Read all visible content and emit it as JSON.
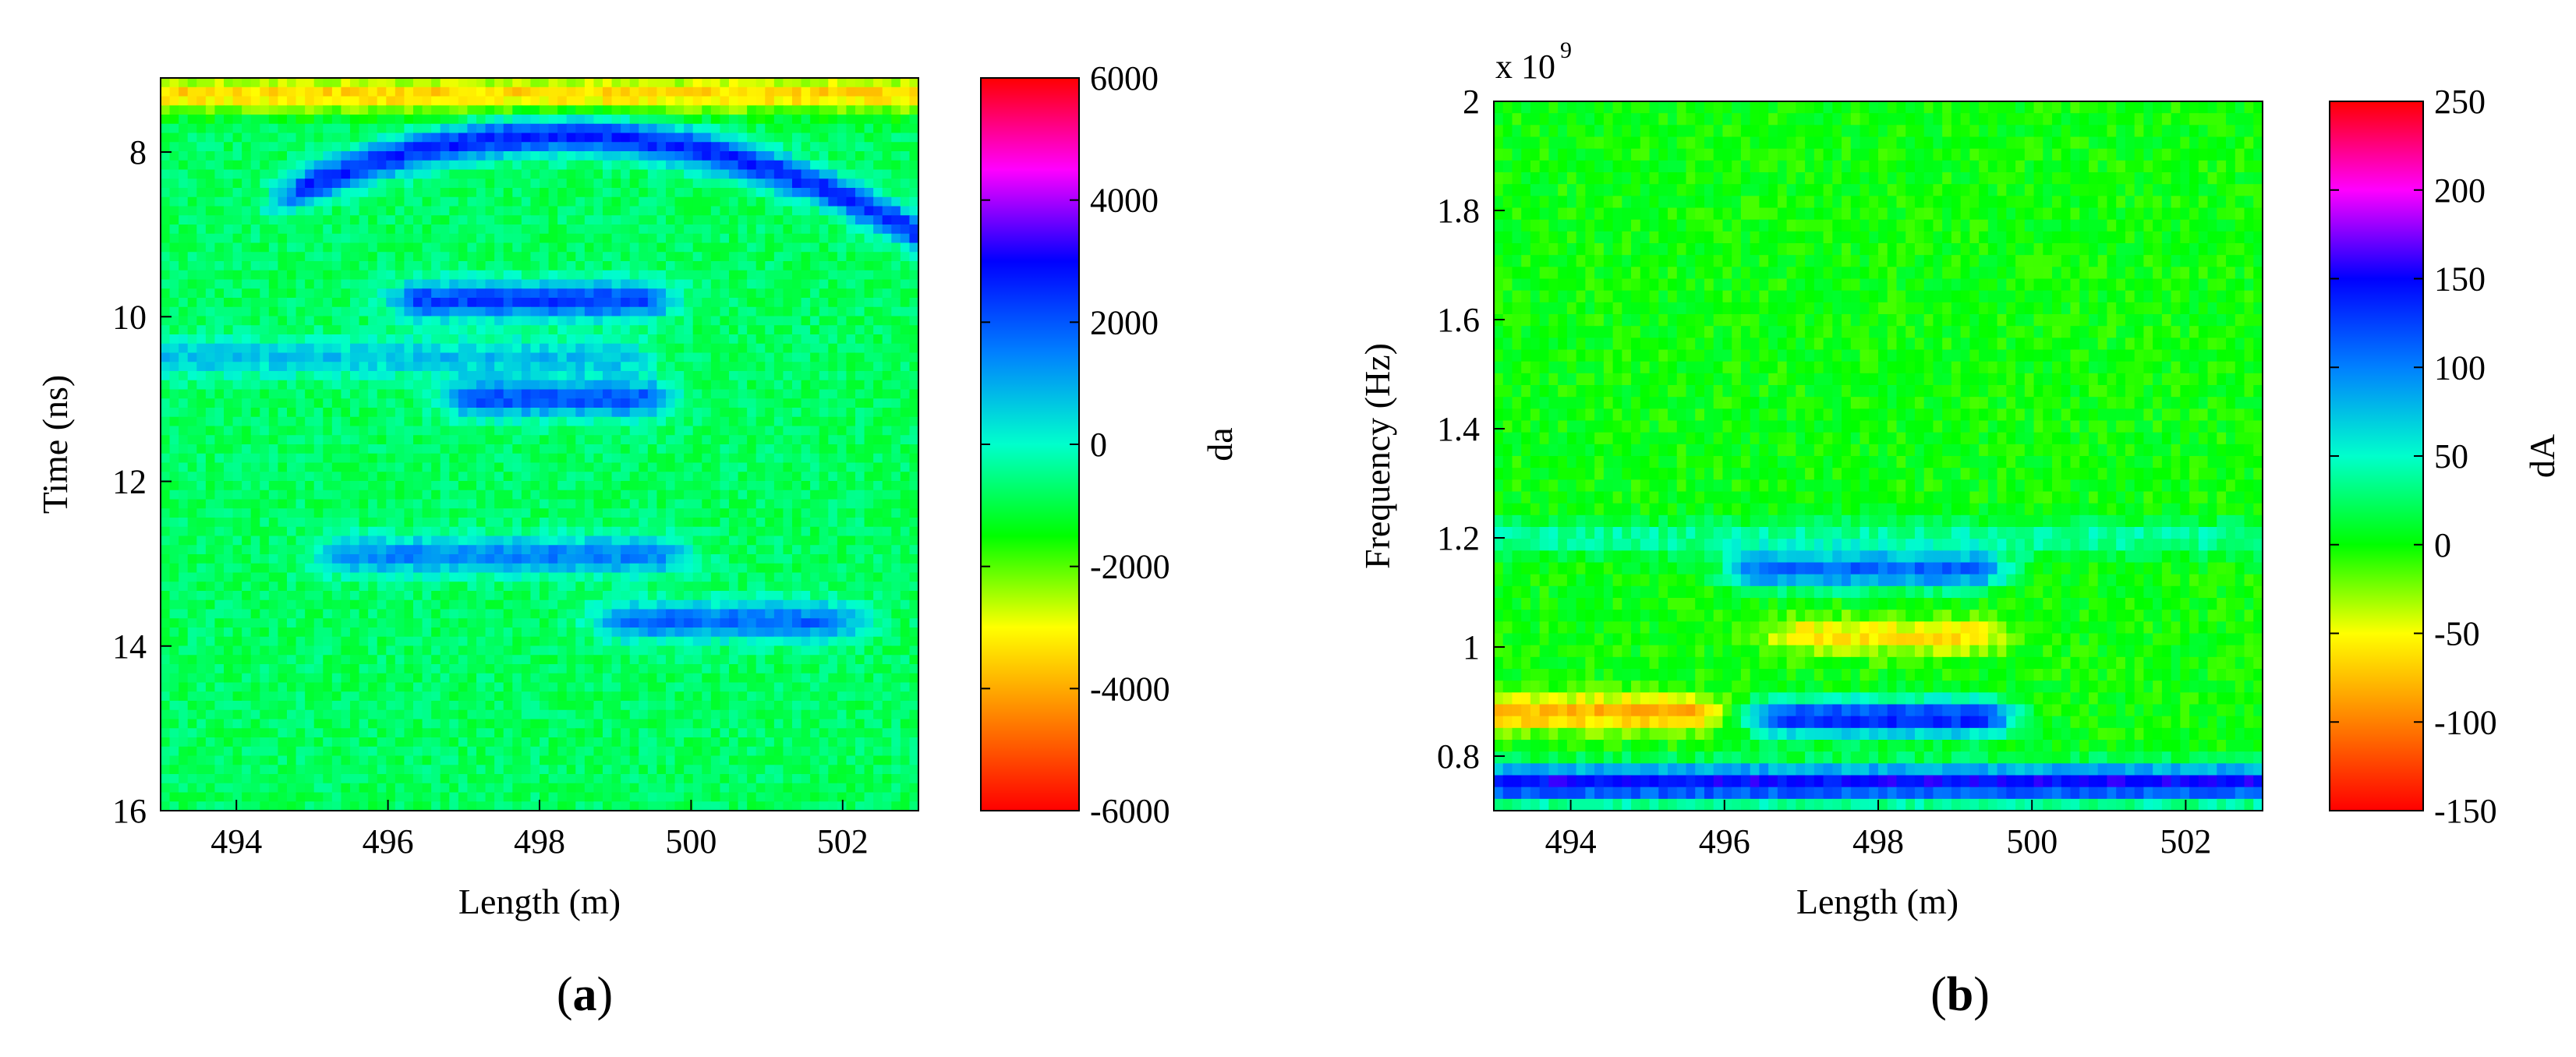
{
  "chart_data": [
    {
      "type": "heatmap",
      "panel_label": "a",
      "title": "",
      "xlabel": "Length (m)",
      "ylabel": "Time (ns)",
      "xlim": [
        493,
        503
      ],
      "ylim": [
        16,
        7.1
      ],
      "y_direction": "down",
      "xticks": [
        494,
        496,
        498,
        500,
        502
      ],
      "yticks": [
        8,
        10,
        12,
        14,
        16
      ],
      "grid": false,
      "colorbar": {
        "label": "da",
        "range": [
          -6000,
          6000
        ],
        "ticks": [
          6000,
          4000,
          2000,
          0,
          -2000,
          -4000,
          -6000
        ],
        "tick_labels": [
          "6000",
          "4000",
          "2000",
          "0",
          "-2000",
          "-4000",
          "-6000"
        ]
      },
      "background_value": -800,
      "features": [
        {
          "shape": "arc",
          "x_range": [
            495,
            503
          ],
          "y_peak": 7.8,
          "y_end": 9.0,
          "peak_x": 498.3,
          "value": 2600
        },
        {
          "shape": "band",
          "x_range": [
            496.5,
            499.3
          ],
          "y": 9.8,
          "value": 2300
        },
        {
          "shape": "band",
          "x_range": [
            497.2,
            499.3
          ],
          "y": 11.0,
          "value": 2000
        },
        {
          "shape": "band",
          "x_range": [
            493,
            499
          ],
          "y": 10.5,
          "value": 700
        },
        {
          "shape": "band",
          "x_range": [
            495.5,
            499.5
          ],
          "y": 12.9,
          "value": 1500
        },
        {
          "shape": "band",
          "x_range": [
            499.2,
            501.8
          ],
          "y": 13.7,
          "value": 1800
        },
        {
          "shape": "band",
          "x_range": [
            493,
            503
          ],
          "y": 7.3,
          "value": -3500
        }
      ]
    },
    {
      "type": "heatmap",
      "panel_label": "b",
      "title": "",
      "xlabel": "Length (m)",
      "ylabel": "Frequency (Hz)",
      "x_multiplier_label": "x 10",
      "y_exponent": "9",
      "xlim": [
        493,
        503
      ],
      "ylim": [
        0.7,
        2.0
      ],
      "xticks": [
        494,
        496,
        498,
        500,
        502
      ],
      "yticks": [
        0.8,
        1.0,
        1.2,
        1.4,
        1.6,
        1.8,
        2.0
      ],
      "ytick_labels": [
        "0.8",
        "1",
        "1.2",
        "1.4",
        "1.6",
        "1.8",
        "2"
      ],
      "grid": false,
      "colorbar": {
        "label": "dA",
        "range": [
          -150,
          250
        ],
        "ticks": [
          250,
          200,
          150,
          100,
          50,
          0,
          -50,
          -100,
          -150
        ],
        "tick_labels": [
          "250",
          "200",
          "150",
          "100",
          "50",
          "0",
          "-50",
          "-100",
          "-150"
        ]
      },
      "background_value": 0,
      "features": [
        {
          "shape": "band",
          "x_range": [
            493,
            503
          ],
          "y": 0.75,
          "value": 150
        },
        {
          "shape": "band",
          "x_range": [
            496.8,
            499.3
          ],
          "y": 0.87,
          "value": 140
        },
        {
          "shape": "band",
          "x_range": [
            497,
            499.2
          ],
          "y": 1.02,
          "value": -60
        },
        {
          "shape": "band",
          "x_range": [
            496.5,
            499.2
          ],
          "y": 1.14,
          "value": 110
        },
        {
          "shape": "band",
          "x_range": [
            493,
            495.5
          ],
          "y": 0.88,
          "value": -80
        },
        {
          "shape": "band",
          "x_range": [
            493,
            503
          ],
          "y": 1.2,
          "value": 40
        }
      ]
    }
  ]
}
